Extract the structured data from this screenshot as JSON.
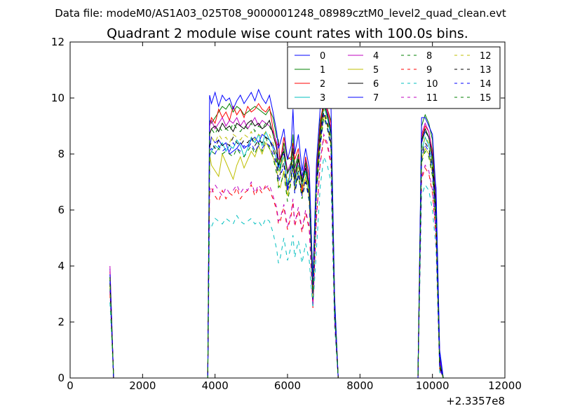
{
  "figure": {
    "suptitle": "Data file: modeM0/AS1A03_025T08_9000001248_08989cztM0_level2_quad_clean.evt"
  },
  "chart_data": {
    "type": "line",
    "title": "Quadrant 2 module wise count rates with 100.0s bins.",
    "xlabel": "",
    "ylabel": "",
    "xlim": [
      0,
      12000
    ],
    "ylim": [
      0,
      12
    ],
    "x_offset_label": "+2.3357e8",
    "xticks": [
      0,
      2000,
      4000,
      6000,
      8000,
      10000,
      12000
    ],
    "yticks": [
      0,
      2,
      4,
      6,
      8,
      10,
      12
    ],
    "grid": false,
    "legend": {
      "placement": "top-right",
      "columns": 4
    },
    "x": [
      1100,
      1200,
      1300,
      3700,
      3800,
      3850,
      3900,
      4000,
      4100,
      4200,
      4300,
      4400,
      4500,
      4600,
      4700,
      4800,
      4900,
      5000,
      5100,
      5200,
      5300,
      5400,
      5500,
      5600,
      5700,
      5750,
      5800,
      5900,
      6000,
      6100,
      6150,
      6200,
      6300,
      6400,
      6500,
      6600,
      6700,
      6800,
      6900,
      7000,
      7100,
      7200,
      7300,
      7400,
      7500,
      7550,
      9600,
      9700,
      9800,
      9900,
      10000,
      10100,
      10200,
      10300
    ],
    "series": [
      {
        "name": "0",
        "color": "#0000ff",
        "dash": "solid",
        "values": [
          3.9,
          0,
          0,
          0,
          0,
          8.2,
          8.6,
          8.4,
          8.5,
          8.3,
          8.4,
          8.0,
          8.1,
          8.2,
          8.4,
          8.2,
          8.3,
          8.5,
          8.6,
          8.4,
          8.7,
          8.6,
          8.5,
          8.3,
          8.0,
          7.5,
          7.9,
          8.0,
          6.7,
          7.6,
          8.2,
          7.0,
          7.9,
          7.2,
          7.8,
          6.9,
          3.1,
          7.1,
          8.5,
          9.9,
          9.4,
          8.7,
          2.5,
          0,
          0,
          0,
          0,
          8.4,
          8.8,
          8.6,
          7.8,
          6.8,
          1.0,
          0
        ]
      },
      {
        "name": "1",
        "color": "#008000",
        "dash": "solid",
        "values": [
          3.5,
          0,
          0,
          0,
          0,
          9.2,
          9.1,
          9.3,
          9.5,
          9.7,
          9.6,
          9.8,
          9.5,
          9.7,
          9.6,
          9.4,
          9.5,
          9.6,
          9.7,
          9.6,
          9.5,
          9.4,
          9.6,
          9.3,
          8.6,
          8.5,
          7.4,
          8.4,
          7.8,
          7.9,
          8.7,
          7.5,
          8.0,
          6.8,
          7.7,
          6.9,
          3.6,
          7.4,
          9.2,
          9.8,
          9.6,
          9.2,
          2.8,
          0,
          0,
          0,
          0,
          9.0,
          9.4,
          9.1,
          8.5,
          6.0,
          0.6,
          0
        ]
      },
      {
        "name": "2",
        "color": "#ff0000",
        "dash": "solid",
        "values": [
          3.8,
          0,
          0,
          0,
          0,
          9.0,
          9.3,
          9.1,
          9.6,
          9.3,
          9.5,
          9.2,
          9.7,
          9.4,
          9.6,
          9.3,
          9.7,
          9.5,
          9.6,
          9.8,
          9.6,
          9.5,
          9.7,
          8.9,
          8.3,
          8.4,
          7.7,
          8.6,
          7.9,
          7.8,
          8.4,
          7.8,
          8.2,
          6.6,
          7.9,
          7.2,
          3.3,
          7.3,
          9.0,
          10.0,
          9.6,
          9.1,
          2.7,
          0,
          0,
          0,
          0,
          8.6,
          9.0,
          8.8,
          8.1,
          6.2,
          0.7,
          0
        ]
      },
      {
        "name": "3",
        "color": "#00bfbf",
        "dash": "solid",
        "values": [
          3.4,
          0,
          0,
          0,
          0,
          7.9,
          8.1,
          8.3,
          8.2,
          8.4,
          8.1,
          8.3,
          8.2,
          8.5,
          8.3,
          7.9,
          8.2,
          8.6,
          8.4,
          8.7,
          8.3,
          8.8,
          8.5,
          8.2,
          7.8,
          7.4,
          7.6,
          7.9,
          6.9,
          7.4,
          7.9,
          6.8,
          7.6,
          6.9,
          7.4,
          6.6,
          2.9,
          6.8,
          8.6,
          9.7,
          9.3,
          8.6,
          2.4,
          0,
          0,
          0,
          0,
          8.1,
          8.6,
          8.3,
          7.6,
          5.8,
          0.5,
          0
        ]
      },
      {
        "name": "4",
        "color": "#bf00bf",
        "dash": "solid",
        "values": [
          4.0,
          0,
          0,
          0,
          0,
          9.0,
          9.2,
          8.9,
          9.1,
          9.3,
          9.0,
          9.2,
          9.1,
          9.3,
          9.0,
          9.2,
          8.9,
          9.1,
          9.3,
          9.0,
          9.2,
          9.1,
          9.0,
          8.8,
          8.4,
          7.8,
          7.9,
          8.2,
          7.4,
          7.7,
          8.3,
          7.3,
          7.9,
          7.1,
          7.6,
          7.0,
          3.2,
          7.2,
          8.8,
          9.9,
          9.5,
          8.9,
          2.6,
          0,
          0,
          0,
          0,
          8.7,
          9.1,
          8.8,
          8.0,
          6.1,
          0.6,
          0
        ]
      },
      {
        "name": "5",
        "color": "#bfbf00",
        "dash": "solid",
        "values": [
          3.3,
          0,
          0,
          0,
          0,
          8.0,
          7.6,
          7.4,
          7.2,
          8.0,
          7.7,
          7.4,
          7.1,
          7.6,
          7.9,
          7.5,
          7.8,
          8.1,
          7.9,
          8.3,
          8.0,
          8.4,
          8.2,
          7.9,
          7.5,
          6.9,
          6.8,
          7.4,
          6.5,
          7.1,
          7.6,
          6.7,
          7.3,
          6.5,
          7.2,
          6.4,
          2.8,
          6.7,
          8.3,
          9.4,
          9.0,
          8.3,
          2.3,
          0,
          0,
          0,
          0,
          7.8,
          8.2,
          8.0,
          7.3,
          5.5,
          0.4,
          0
        ]
      },
      {
        "name": "6",
        "color": "#000000",
        "dash": "solid",
        "values": [
          3.6,
          0,
          0,
          0,
          0,
          8.7,
          8.9,
          9.0,
          8.8,
          9.1,
          8.9,
          9.0,
          8.8,
          9.1,
          9.0,
          8.9,
          9.1,
          9.2,
          9.0,
          9.1,
          8.9,
          9.0,
          9.2,
          8.7,
          8.2,
          7.6,
          7.8,
          8.1,
          7.3,
          7.6,
          8.2,
          7.1,
          7.8,
          7.0,
          7.5,
          6.8,
          3.0,
          7.0,
          8.7,
          9.8,
          9.4,
          8.8,
          2.5,
          0,
          0,
          0,
          0,
          8.5,
          8.9,
          8.6,
          7.9,
          6.0,
          0.5,
          0
        ]
      },
      {
        "name": "7",
        "color": "#0000ff",
        "dash": "solid",
        "values": [
          3.7,
          0,
          0,
          0,
          0,
          10.1,
          9.8,
          10.2,
          9.7,
          10.1,
          9.9,
          10.0,
          9.6,
          9.9,
          10.1,
          9.8,
          10.0,
          10.2,
          9.9,
          10.3,
          10.0,
          9.8,
          10.1,
          9.5,
          8.8,
          8.2,
          8.4,
          8.9,
          7.8,
          8.3,
          9.6,
          8.0,
          8.7,
          7.4,
          8.2,
          7.5,
          3.4,
          7.7,
          9.6,
          10.6,
          10.8,
          9.7,
          2.9,
          0,
          0,
          0,
          0,
          9.3,
          9.3,
          9.0,
          8.7,
          6.6,
          0.8,
          0
        ]
      },
      {
        "name": "8",
        "color": "#008000",
        "dash": "dashed",
        "values": [
          3.2,
          0,
          0,
          0,
          0,
          8.0,
          8.1,
          8.0,
          8.2,
          8.0,
          8.1,
          8.0,
          7.9,
          8.2,
          8.0,
          7.9,
          8.1,
          8.3,
          8.0,
          8.4,
          8.1,
          8.6,
          8.2,
          7.9,
          7.3,
          6.8,
          6.9,
          7.3,
          6.3,
          7.0,
          7.5,
          6.6,
          7.2,
          6.4,
          7.0,
          6.3,
          2.7,
          6.6,
          8.2,
          9.3,
          8.9,
          8.2,
          2.2,
          0,
          0,
          0,
          0,
          7.7,
          8.1,
          7.9,
          7.2,
          5.4,
          0.4,
          0
        ]
      },
      {
        "name": "9",
        "color": "#ff0000",
        "dash": "dashed",
        "values": [
          3.0,
          0,
          0,
          0,
          0,
          6.6,
          6.8,
          6.5,
          6.3,
          6.7,
          6.4,
          6.6,
          6.5,
          6.8,
          6.4,
          6.6,
          6.7,
          6.9,
          6.5,
          6.8,
          6.6,
          6.9,
          6.7,
          6.4,
          6.0,
          5.5,
          5.6,
          6.1,
          5.3,
          5.8,
          6.3,
          5.4,
          6.0,
          5.2,
          5.9,
          5.3,
          2.5,
          5.7,
          7.6,
          8.6,
          8.3,
          7.6,
          2.0,
          0,
          0,
          0,
          0,
          7.1,
          7.5,
          7.3,
          6.6,
          5.0,
          0.3,
          0
        ]
      },
      {
        "name": "10",
        "color": "#00bfbf",
        "dash": "dashed",
        "values": [
          2.7,
          0,
          0,
          0,
          0,
          5.5,
          5.4,
          5.7,
          5.6,
          5.5,
          5.7,
          5.6,
          5.5,
          5.8,
          5.6,
          5.5,
          5.6,
          5.7,
          5.5,
          5.6,
          5.4,
          5.7,
          5.6,
          5.2,
          4.6,
          4.1,
          4.3,
          5.0,
          4.2,
          4.7,
          5.1,
          4.3,
          4.9,
          4.1,
          4.8,
          4.2,
          2.5,
          4.6,
          6.8,
          7.9,
          7.6,
          7.0,
          1.8,
          0,
          0,
          0,
          0,
          6.5,
          6.9,
          6.7,
          6.0,
          4.6,
          0.2,
          0
        ]
      },
      {
        "name": "11",
        "color": "#bf00bf",
        "dash": "dashed",
        "values": [
          3.1,
          0,
          0,
          0,
          0,
          6.8,
          6.6,
          6.9,
          6.7,
          6.5,
          6.8,
          6.6,
          6.7,
          6.9,
          6.6,
          6.8,
          6.7,
          7.0,
          6.6,
          6.9,
          6.7,
          6.8,
          6.9,
          6.5,
          6.1,
          5.6,
          5.7,
          6.2,
          5.4,
          5.9,
          6.4,
          5.5,
          6.1,
          5.3,
          6.0,
          5.4,
          2.6,
          5.8,
          7.7,
          8.7,
          8.4,
          7.7,
          2.0,
          0,
          0,
          0,
          0,
          7.2,
          7.6,
          7.4,
          6.7,
          5.1,
          0.3,
          0
        ]
      },
      {
        "name": "12",
        "color": "#bfbf00",
        "dash": "dashed",
        "values": [
          3.3,
          0,
          0,
          0,
          0,
          8.5,
          8.6,
          8.4,
          8.7,
          8.5,
          8.6,
          8.4,
          8.7,
          8.6,
          8.5,
          8.7,
          8.6,
          8.8,
          8.5,
          8.7,
          8.6,
          8.8,
          8.7,
          8.4,
          7.9,
          7.3,
          7.5,
          7.9,
          7.0,
          7.4,
          7.9,
          6.9,
          7.6,
          6.8,
          7.3,
          6.6,
          2.9,
          6.9,
          8.5,
          9.6,
          9.2,
          8.5,
          2.4,
          0,
          0,
          0,
          0,
          8.2,
          8.6,
          8.4,
          7.7,
          5.7,
          0.5,
          0
        ]
      },
      {
        "name": "13",
        "color": "#000000",
        "dash": "dashed",
        "values": [
          3.4,
          0,
          0,
          0,
          0,
          8.3,
          8.4,
          8.2,
          8.5,
          8.3,
          8.4,
          8.3,
          8.6,
          8.4,
          8.3,
          8.5,
          8.4,
          8.6,
          8.3,
          8.5,
          8.4,
          8.6,
          8.5,
          8.2,
          7.7,
          7.1,
          7.3,
          7.7,
          6.8,
          7.2,
          7.7,
          6.7,
          7.4,
          6.6,
          7.1,
          6.5,
          2.8,
          6.8,
          8.4,
          9.5,
          9.1,
          8.4,
          2.3,
          0,
          0,
          0,
          0,
          8.0,
          8.4,
          8.2,
          7.5,
          5.6,
          0.4,
          0
        ]
      },
      {
        "name": "14",
        "color": "#0000ff",
        "dash": "dashed",
        "values": [
          3.5,
          0,
          0,
          0,
          0,
          8.1,
          8.2,
          8.0,
          8.3,
          8.1,
          8.2,
          8.1,
          8.4,
          8.2,
          8.1,
          8.3,
          8.2,
          8.4,
          8.1,
          8.3,
          8.2,
          8.4,
          8.3,
          8.0,
          7.6,
          7.0,
          7.2,
          7.6,
          6.7,
          7.1,
          7.6,
          6.6,
          7.3,
          6.5,
          7.0,
          6.4,
          2.8,
          6.7,
          8.3,
          9.4,
          9.0,
          8.3,
          2.3,
          0,
          0,
          0,
          0,
          7.9,
          8.3,
          8.1,
          7.4,
          5.5,
          0.4,
          0
        ]
      },
      {
        "name": "15",
        "color": "#008000",
        "dash": "dashed",
        "values": [
          3.6,
          0,
          0,
          0,
          0,
          8.8,
          8.9,
          8.7,
          9.0,
          8.8,
          8.9,
          8.8,
          9.1,
          8.9,
          8.8,
          9.0,
          8.9,
          9.1,
          8.8,
          9.0,
          8.9,
          9.1,
          9.0,
          8.7,
          8.2,
          7.6,
          7.8,
          8.2,
          7.3,
          7.7,
          8.2,
          7.2,
          7.9,
          7.1,
          7.6,
          6.9,
          3.0,
          7.1,
          8.8,
          9.8,
          9.4,
          8.8,
          2.5,
          0,
          0,
          0,
          0,
          8.4,
          8.8,
          8.6,
          7.9,
          5.9,
          0.5,
          0
        ]
      }
    ]
  }
}
